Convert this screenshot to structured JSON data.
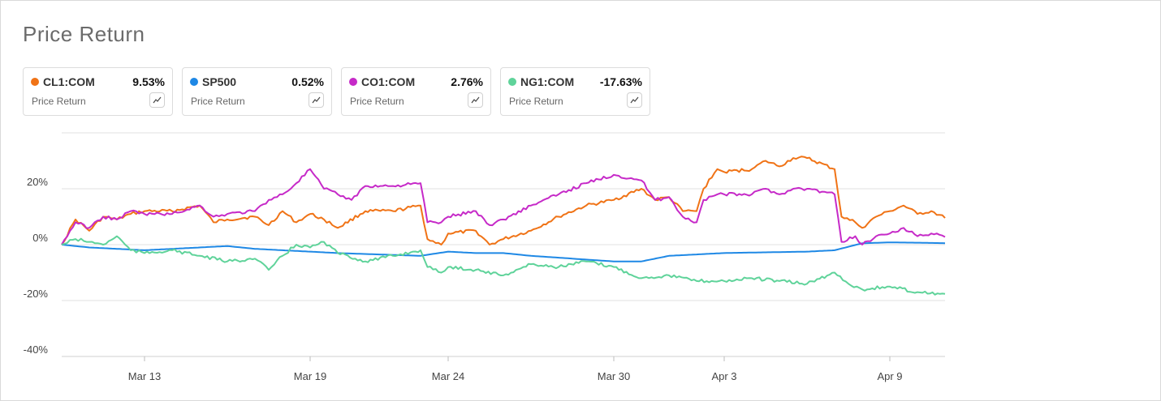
{
  "title": "Price Return",
  "cards": [
    {
      "symbol": "CL1:COM",
      "value": "9.53%",
      "subtitle": "Price Return",
      "color": "#f07316",
      "icon": "mini-line-chart-icon"
    },
    {
      "symbol": "SP500",
      "value": "0.52%",
      "subtitle": "Price Return",
      "color": "#1e88e5",
      "icon": "mini-line-chart-icon"
    },
    {
      "symbol": "CO1:COM",
      "value": "2.76%",
      "subtitle": "Price Return",
      "color": "#c62ac8",
      "icon": "mini-line-chart-icon"
    },
    {
      "symbol": "NG1:COM",
      "value": "-17.63%",
      "subtitle": "Price Return",
      "color": "#5fd39a",
      "icon": "mini-line-chart-icon"
    }
  ],
  "chart_data": {
    "type": "line",
    "x_type": "date",
    "x_tick_labels": [
      "Mar 13",
      "Mar 19",
      "Mar 24",
      "Mar 30",
      "Apr 3",
      "Apr 9"
    ],
    "y_tick_labels": [
      "20%",
      "0%",
      "-20%",
      "-40%"
    ],
    "y_ticks": [
      20,
      0,
      -20,
      -40
    ],
    "ylim": [
      -40,
      40
    ],
    "xlim": [
      "2020-03-10",
      "2020-04-11"
    ],
    "grid": "horizontal",
    "series": [
      {
        "name": "CL1:COM",
        "color": "#f07316",
        "points": [
          [
            "2020-03-10",
            0
          ],
          [
            "2020-03-10T12:00",
            9
          ],
          [
            "2020-03-11",
            5
          ],
          [
            "2020-03-11T12:00",
            10
          ],
          [
            "2020-03-12",
            9
          ],
          [
            "2020-03-12T12:00",
            11
          ],
          [
            "2020-03-13",
            12
          ],
          [
            "2020-03-14",
            12
          ],
          [
            "2020-03-15",
            14
          ],
          [
            "2020-03-15T12:00",
            8
          ],
          [
            "2020-03-16",
            9
          ],
          [
            "2020-03-17",
            10
          ],
          [
            "2020-03-17T12:00",
            7
          ],
          [
            "2020-03-18",
            12
          ],
          [
            "2020-03-18T12:00",
            8
          ],
          [
            "2020-03-19",
            11
          ],
          [
            "2020-03-19T12:00",
            9
          ],
          [
            "2020-03-20",
            6
          ],
          [
            "2020-03-21",
            12
          ],
          [
            "2020-03-22",
            12
          ],
          [
            "2020-03-23",
            14
          ],
          [
            "2020-03-23T06:00",
            2
          ],
          [
            "2020-03-23T18:00",
            0
          ],
          [
            "2020-03-24",
            4
          ],
          [
            "2020-03-25",
            5
          ],
          [
            "2020-03-25T12:00",
            0
          ],
          [
            "2020-03-26",
            2
          ],
          [
            "2020-03-27",
            5
          ],
          [
            "2020-03-28",
            10
          ],
          [
            "2020-03-29",
            14
          ],
          [
            "2020-03-30",
            16
          ],
          [
            "2020-03-31",
            20
          ],
          [
            "2020-03-31T12:00",
            16
          ],
          [
            "2020-04-01",
            17
          ],
          [
            "2020-04-01T12:00",
            12
          ],
          [
            "2020-04-02",
            12
          ],
          [
            "2020-04-02T06:00",
            20
          ],
          [
            "2020-04-02T18:00",
            27
          ],
          [
            "2020-04-03",
            26
          ],
          [
            "2020-04-04",
            27
          ],
          [
            "2020-04-04T12:00",
            30
          ],
          [
            "2020-04-05",
            28
          ],
          [
            "2020-04-05T12:00",
            31
          ],
          [
            "2020-04-06",
            31
          ],
          [
            "2020-04-07",
            27
          ],
          [
            "2020-04-07T06:00",
            10
          ],
          [
            "2020-04-07T18:00",
            8
          ],
          [
            "2020-04-08",
            6
          ],
          [
            "2020-04-08T12:00",
            10
          ],
          [
            "2020-04-09",
            12
          ],
          [
            "2020-04-09T12:00",
            14
          ],
          [
            "2020-04-10",
            11
          ],
          [
            "2020-04-10T12:00",
            12
          ],
          [
            "2020-04-11",
            9.53
          ]
        ]
      },
      {
        "name": "SP500",
        "color": "#1e88e5",
        "points": [
          [
            "2020-03-10",
            0
          ],
          [
            "2020-03-11",
            -1
          ],
          [
            "2020-03-12",
            -1.5
          ],
          [
            "2020-03-13",
            -2
          ],
          [
            "2020-03-16",
            -0.5
          ],
          [
            "2020-03-17",
            -1.5
          ],
          [
            "2020-03-18",
            -2
          ],
          [
            "2020-03-19",
            -2.5
          ],
          [
            "2020-03-20",
            -3
          ],
          [
            "2020-03-23",
            -4
          ],
          [
            "2020-03-24",
            -2.5
          ],
          [
            "2020-03-25",
            -3
          ],
          [
            "2020-03-26",
            -3
          ],
          [
            "2020-03-27",
            -4
          ],
          [
            "2020-03-30",
            -6
          ],
          [
            "2020-03-31",
            -6
          ],
          [
            "2020-04-01",
            -4
          ],
          [
            "2020-04-02",
            -3.5
          ],
          [
            "2020-04-03",
            -3
          ],
          [
            "2020-04-06",
            -2.5
          ],
          [
            "2020-04-07",
            -2
          ],
          [
            "2020-04-08",
            0.5
          ],
          [
            "2020-04-09",
            0.8
          ],
          [
            "2020-04-10",
            0.7
          ],
          [
            "2020-04-11",
            0.52
          ]
        ]
      },
      {
        "name": "CO1:COM",
        "color": "#c62ac8",
        "points": [
          [
            "2020-03-10",
            0
          ],
          [
            "2020-03-10T12:00",
            8
          ],
          [
            "2020-03-11",
            6
          ],
          [
            "2020-03-11T12:00",
            10
          ],
          [
            "2020-03-12",
            9
          ],
          [
            "2020-03-12T12:00",
            12
          ],
          [
            "2020-03-13",
            11
          ],
          [
            "2020-03-14",
            11
          ],
          [
            "2020-03-15",
            14
          ],
          [
            "2020-03-15T12:00",
            10
          ],
          [
            "2020-03-16",
            11
          ],
          [
            "2020-03-17",
            12
          ],
          [
            "2020-03-17T12:00",
            16
          ],
          [
            "2020-03-18",
            18
          ],
          [
            "2020-03-18T12:00",
            22
          ],
          [
            "2020-03-19",
            27
          ],
          [
            "2020-03-19T12:00",
            20
          ],
          [
            "2020-03-20",
            18
          ],
          [
            "2020-03-20T12:00",
            16
          ],
          [
            "2020-03-21",
            21
          ],
          [
            "2020-03-22",
            21
          ],
          [
            "2020-03-23",
            22
          ],
          [
            "2020-03-23T06:00",
            8
          ],
          [
            "2020-03-23T18:00",
            8
          ],
          [
            "2020-03-24",
            10
          ],
          [
            "2020-03-25",
            12
          ],
          [
            "2020-03-25T12:00",
            7
          ],
          [
            "2020-03-26",
            9
          ],
          [
            "2020-03-27",
            14
          ],
          [
            "2020-03-28",
            18
          ],
          [
            "2020-03-29",
            22
          ],
          [
            "2020-03-30",
            25
          ],
          [
            "2020-03-31",
            23
          ],
          [
            "2020-03-31T12:00",
            16
          ],
          [
            "2020-04-01",
            17
          ],
          [
            "2020-04-01T12:00",
            10
          ],
          [
            "2020-04-02",
            8
          ],
          [
            "2020-04-02T06:00",
            16
          ],
          [
            "2020-04-02T18:00",
            18
          ],
          [
            "2020-04-03",
            18
          ],
          [
            "2020-04-04",
            18
          ],
          [
            "2020-04-04T12:00",
            20
          ],
          [
            "2020-04-05",
            18
          ],
          [
            "2020-04-05T12:00",
            20
          ],
          [
            "2020-04-06",
            20
          ],
          [
            "2020-04-07",
            18
          ],
          [
            "2020-04-07T06:00",
            1
          ],
          [
            "2020-04-07T18:00",
            3
          ],
          [
            "2020-04-08",
            0
          ],
          [
            "2020-04-08T12:00",
            3
          ],
          [
            "2020-04-09",
            4
          ],
          [
            "2020-04-09T12:00",
            6
          ],
          [
            "2020-04-10",
            3
          ],
          [
            "2020-04-10T12:00",
            4
          ],
          [
            "2020-04-11",
            2.76
          ]
        ]
      },
      {
        "name": "NG1:COM",
        "color": "#5fd39a",
        "points": [
          [
            "2020-03-10",
            0
          ],
          [
            "2020-03-10T12:00",
            2
          ],
          [
            "2020-03-11",
            1
          ],
          [
            "2020-03-11T12:00",
            0
          ],
          [
            "2020-03-12",
            3
          ],
          [
            "2020-03-12T12:00",
            -2
          ],
          [
            "2020-03-13",
            -3
          ],
          [
            "2020-03-14",
            -2
          ],
          [
            "2020-03-15",
            -4
          ],
          [
            "2020-03-16",
            -6
          ],
          [
            "2020-03-17",
            -5
          ],
          [
            "2020-03-17T12:00",
            -9
          ],
          [
            "2020-03-18",
            -4
          ],
          [
            "2020-03-18T12:00",
            0
          ],
          [
            "2020-03-19",
            -1
          ],
          [
            "2020-03-19T12:00",
            1
          ],
          [
            "2020-03-20",
            -3
          ],
          [
            "2020-03-21",
            -6
          ],
          [
            "2020-03-22",
            -4
          ],
          [
            "2020-03-23",
            -2
          ],
          [
            "2020-03-23T06:00",
            -8
          ],
          [
            "2020-03-23T18:00",
            -10
          ],
          [
            "2020-03-24",
            -8
          ],
          [
            "2020-03-25",
            -9
          ],
          [
            "2020-03-26",
            -11
          ],
          [
            "2020-03-27",
            -7
          ],
          [
            "2020-03-28",
            -8
          ],
          [
            "2020-03-29",
            -6
          ],
          [
            "2020-03-30",
            -8
          ],
          [
            "2020-03-31",
            -12
          ],
          [
            "2020-04-01",
            -11
          ],
          [
            "2020-04-02",
            -13
          ],
          [
            "2020-04-03",
            -13
          ],
          [
            "2020-04-04",
            -12
          ],
          [
            "2020-04-05",
            -13
          ],
          [
            "2020-04-06",
            -14
          ],
          [
            "2020-04-07",
            -10
          ],
          [
            "2020-04-07T12:00",
            -14
          ],
          [
            "2020-04-08",
            -16
          ],
          [
            "2020-04-09",
            -15
          ],
          [
            "2020-04-10",
            -17
          ],
          [
            "2020-04-11",
            -17.63
          ]
        ]
      }
    ]
  }
}
